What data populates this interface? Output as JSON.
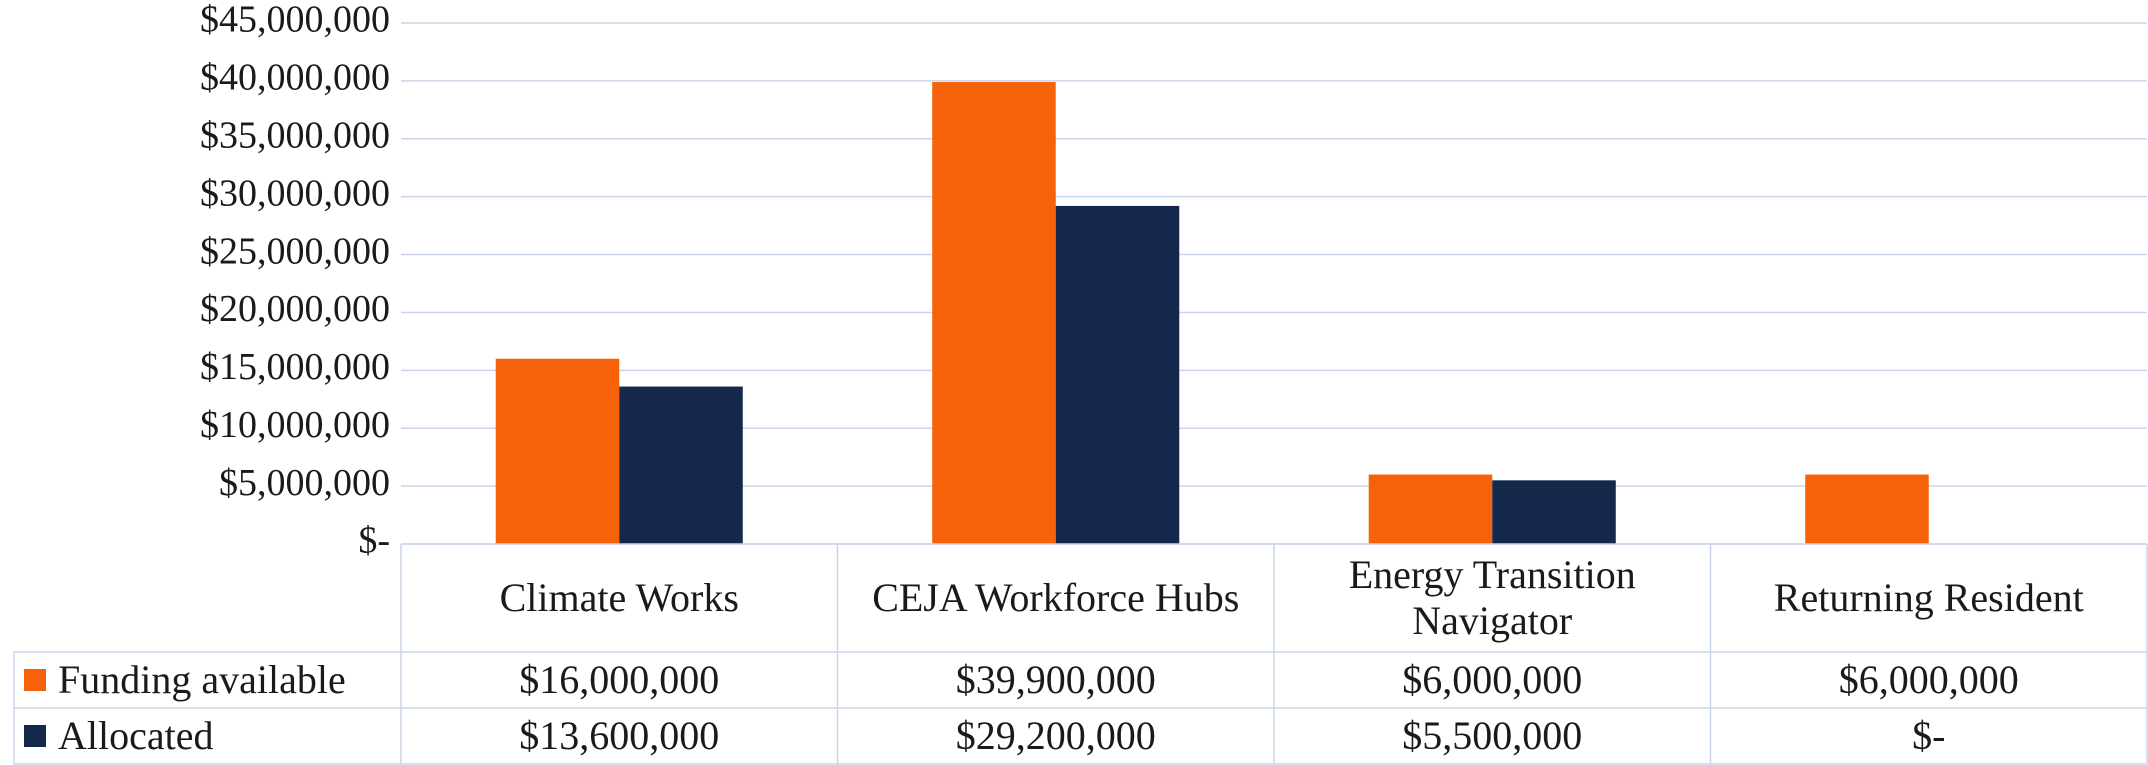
{
  "chart_data": {
    "type": "bar",
    "categories": [
      "Climate Works",
      "CEJA Workforce Hubs",
      "Energy Transition Navigator",
      "Returning Resident"
    ],
    "series": [
      {
        "name": "Funding available",
        "color": "#f5620a",
        "values": [
          16000000,
          39900000,
          6000000,
          6000000
        ],
        "value_labels": [
          "$16,000,000",
          "$39,900,000",
          "$6,000,000",
          "$6,000,000"
        ]
      },
      {
        "name": "Allocated",
        "color": "#14284b",
        "values": [
          13600000,
          29200000,
          5500000,
          0
        ],
        "value_labels": [
          "$13,600,000",
          "$29,200,000",
          "$5,500,000",
          "$-"
        ]
      }
    ],
    "ylim": [
      0,
      45000000
    ],
    "yticks": [
      {
        "value": 0,
        "label": "$-"
      },
      {
        "value": 5000000,
        "label": "$5,000,000"
      },
      {
        "value": 10000000,
        "label": "$10,000,000"
      },
      {
        "value": 15000000,
        "label": "$15,000,000"
      },
      {
        "value": 20000000,
        "label": "$20,000,000"
      },
      {
        "value": 25000000,
        "label": "$25,000,000"
      },
      {
        "value": 30000000,
        "label": "$30,000,000"
      },
      {
        "value": 35000000,
        "label": "$35,000,000"
      },
      {
        "value": 40000000,
        "label": "$40,000,000"
      },
      {
        "value": 45000000,
        "label": "$45,000,000"
      }
    ],
    "grid": true,
    "grid_color": "#c9d6ea"
  }
}
